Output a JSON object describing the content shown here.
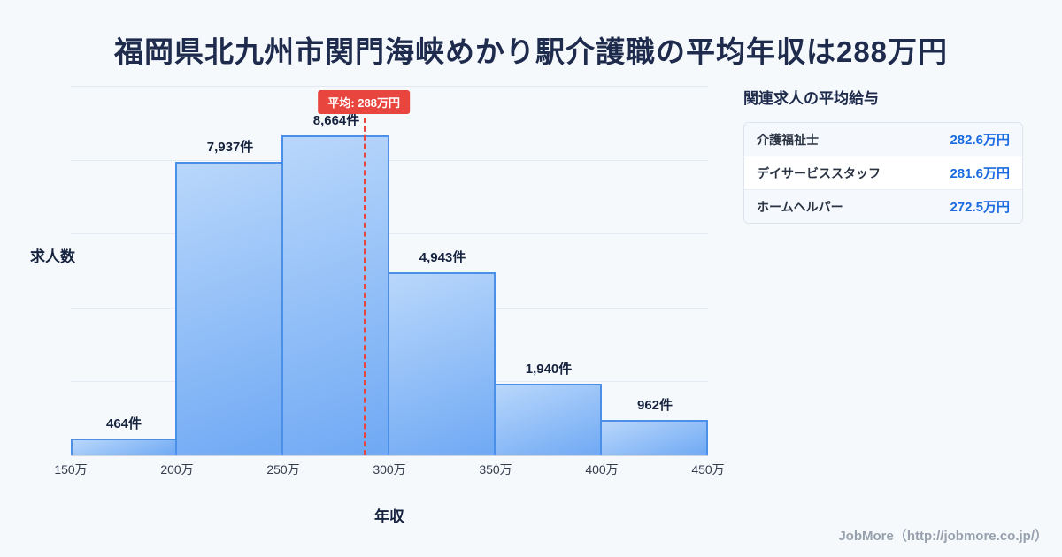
{
  "page": {
    "title": "福岡県北九州市関門海峡めかり駅介護職の平均年収は288万円",
    "footer": "JobMore（http://jobmore.co.jp/）"
  },
  "chart_data": {
    "type": "bar",
    "title": "福岡県北九州市関門海峡めかり駅介護職の平均年収は288万円",
    "categories": [
      "150万-200万",
      "200万-250万",
      "250万-300万",
      "300万-350万",
      "350万-400万",
      "400万-450万"
    ],
    "values": [
      464,
      7937,
      8664,
      4943,
      1940,
      962
    ],
    "bar_labels": [
      "464件",
      "7,937件",
      "8,664件",
      "4,943件",
      "1,940件",
      "962件"
    ],
    "x_ticks": [
      "150万",
      "200万",
      "250万",
      "300万",
      "350万",
      "400万",
      "450万"
    ],
    "xlim": [
      150,
      450
    ],
    "ylim": [
      0,
      10000
    ],
    "grid": true,
    "legend": "none",
    "xlabel": "年収",
    "ylabel": "求人数",
    "average_line": {
      "value": 288,
      "label": "平均: 288万円"
    }
  },
  "side_panel": {
    "heading": "関連求人の平均給与",
    "rows": [
      {
        "label": "介護福祉士",
        "value": "282.6万円"
      },
      {
        "label": "デイサービススタッフ",
        "value": "281.6万円"
      },
      {
        "label": "ホームヘルパー",
        "value": "272.5万円"
      }
    ]
  },
  "colors": {
    "background": "#f6f9fc",
    "title_navy": "#1e2b4d",
    "bar_fill_top": "#b9d7fb",
    "bar_fill_bottom": "#6fa9f4",
    "bar_border": "#4a90e8",
    "average_red": "#e8453f",
    "value_blue": "#1b6be0"
  }
}
